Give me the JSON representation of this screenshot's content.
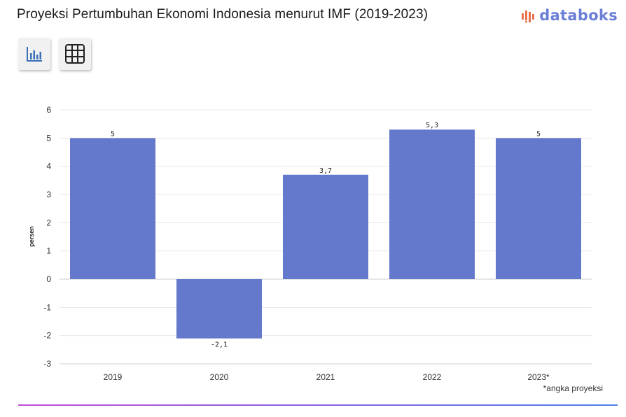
{
  "header": {
    "title": "Proyeksi Pertumbuhan Ekonomi Indonesia menurut IMF (2019-2023)",
    "brand": "databoks"
  },
  "toolbar": {
    "chart_view_icon": "bar-chart-icon",
    "table_view_icon": "table-grid-icon"
  },
  "footnote": "*angka proyeksi",
  "colors": {
    "bar": "#6479cc",
    "brand": "#6b7fd6",
    "grid": "#e8e8e8"
  },
  "chart_data": {
    "type": "bar",
    "title": "Proyeksi Pertumbuhan Ekonomi Indonesia menurut IMF (2019-2023)",
    "categories": [
      "2019",
      "2020",
      "2021",
      "2022",
      "2023*"
    ],
    "values": [
      5,
      -2.1,
      3.7,
      5.3,
      5
    ],
    "value_labels": [
      "5",
      "-2,1",
      "3,7",
      "5,3",
      "5"
    ],
    "ylabel": "persen",
    "xlabel": "",
    "ylim": [
      -3,
      6
    ],
    "yticks": [
      6,
      5,
      4,
      3,
      2,
      1,
      0,
      -1,
      -2,
      -3
    ],
    "grid": true,
    "legend": "none"
  }
}
